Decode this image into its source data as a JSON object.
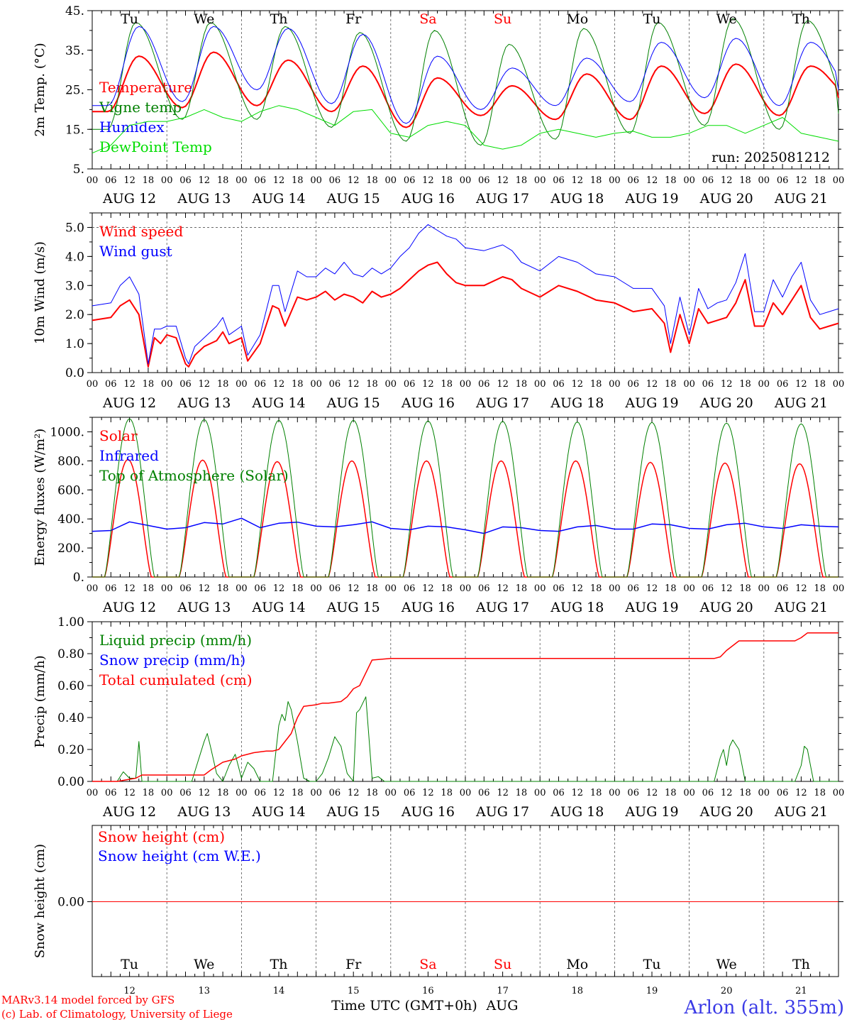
{
  "colors": {
    "red": "#ff0000",
    "green": "#008000",
    "blue": "#0000ff",
    "lime": "#00dd00",
    "title_blue": "#3a3ae6"
  },
  "run_label": "run: 2025081212",
  "hour_ticks": [
    "00",
    "06",
    "12",
    "18"
  ],
  "hour_end": "00",
  "dates": [
    "AUG 12",
    "AUG 13",
    "AUG 14",
    "AUG 15",
    "AUG 16",
    "AUG 17",
    "AUG 18",
    "AUG 19",
    "AUG 20",
    "AUG 21"
  ],
  "weekdays": [
    {
      "label": "Tu",
      "weekend": false
    },
    {
      "label": "We",
      "weekend": false
    },
    {
      "label": "Th",
      "weekend": false
    },
    {
      "label": "Fr",
      "weekend": false
    },
    {
      "label": "Sa",
      "weekend": true
    },
    {
      "label": "Su",
      "weekend": true
    },
    {
      "label": "Mo",
      "weekend": false
    },
    {
      "label": "Tu",
      "weekend": false
    },
    {
      "label": "We",
      "weekend": false
    },
    {
      "label": "Th",
      "weekend": false
    }
  ],
  "day_numbers": [
    "12",
    "13",
    "14",
    "15",
    "16",
    "17",
    "18",
    "19",
    "20",
    "21"
  ],
  "xaxis_title": "Time UTC (GMT+0h)",
  "month_label": "AUG",
  "footer": {
    "model_line": "MARv3.14 model forced by GFS",
    "copyright_line": "(c) Lab. of Climatology, University of Liege",
    "location": "Arlon (alt. 355m)"
  },
  "chart_data": [
    {
      "type": "line",
      "ylabel": "2m Temp. (°C)",
      "ylim": [
        5,
        45
      ],
      "yticks": [
        {
          "v": 5,
          "label": "5."
        },
        {
          "v": 15,
          "label": "15."
        },
        {
          "v": 25,
          "label": "25."
        },
        {
          "v": 35,
          "label": "35."
        },
        {
          "v": 45,
          "label": "45."
        }
      ],
      "grid": true,
      "x_range_hours": [
        0,
        240
      ],
      "series": [
        {
          "name": "Temperature",
          "color": "#ff0000",
          "width": 2,
          "min": [
            19.5,
            20.5,
            21,
            19.5,
            15.5,
            18.5,
            17.5,
            17.5,
            19,
            18.5,
            23
          ],
          "max": [
            33.5,
            34.5,
            32.5,
            31,
            28,
            26,
            29,
            31,
            31.5,
            31
          ],
          "peak_hour": 15
        },
        {
          "name": "Vigne temp",
          "color": "#008000",
          "width": 1,
          "min": [
            15,
            17.5,
            17.5,
            15.5,
            12,
            11,
            12.5,
            14,
            16,
            15,
            19
          ],
          "max": [
            42,
            42,
            41,
            39.5,
            40,
            36.5,
            40.5,
            42,
            43,
            42.5
          ],
          "peak_hour": 14
        },
        {
          "name": "Humidex",
          "color": "#0000ff",
          "width": 1,
          "min": [
            21,
            22,
            25,
            21.5,
            16.5,
            20,
            21,
            22,
            23,
            21,
            25
          ],
          "max": [
            41,
            41,
            40.5,
            39,
            33.5,
            30.5,
            33,
            37,
            38,
            37
          ],
          "peak_hour": 15
        },
        {
          "name": "DewPoint Temp",
          "color": "#00dd00",
          "width": 1,
          "x": [
            0,
            6,
            12,
            18,
            24,
            30,
            36,
            42,
            48,
            54,
            60,
            66,
            72,
            78,
            84,
            90,
            96,
            102,
            108,
            114,
            120,
            126,
            132,
            138,
            144,
            150,
            156,
            162,
            168,
            174,
            180,
            186,
            192,
            198,
            204,
            210,
            216,
            222,
            228,
            234,
            240
          ],
          "y": [
            9,
            11,
            16,
            17,
            17,
            18,
            20,
            18,
            17,
            19.5,
            21,
            20,
            18,
            16,
            19.5,
            20,
            14,
            13,
            16,
            17,
            16,
            11,
            10,
            11,
            14,
            15,
            14,
            13,
            14,
            14.5,
            13,
            13,
            14,
            16,
            16,
            14,
            16,
            18,
            14,
            13,
            12
          ]
        }
      ]
    },
    {
      "type": "line",
      "ylabel": "10m Wind (m/s)",
      "ylim": [
        0,
        5.5
      ],
      "yticks": [
        {
          "v": 0,
          "label": "0.0"
        },
        {
          "v": 1,
          "label": "1.0"
        },
        {
          "v": 2,
          "label": "2.0"
        },
        {
          "v": 3,
          "label": "3.0"
        },
        {
          "v": 4,
          "label": "4.0"
        },
        {
          "v": 5,
          "label": "5.0"
        }
      ],
      "ref_line": 5,
      "grid": true,
      "x_range_hours": [
        0,
        240
      ],
      "series": [
        {
          "name": "Wind speed",
          "color": "#ff0000",
          "width": 2,
          "x": [
            0,
            6,
            9,
            12,
            15,
            18,
            20,
            22,
            24,
            27,
            30,
            31,
            33,
            36,
            40,
            42,
            44,
            48,
            50,
            54,
            58,
            60,
            62,
            66,
            69,
            72,
            75,
            78,
            81,
            84,
            87,
            90,
            93,
            96,
            99,
            102,
            105,
            108,
            111,
            114,
            117,
            120,
            126,
            132,
            135,
            138,
            144,
            150,
            156,
            162,
            168,
            174,
            180,
            184,
            186,
            189,
            192,
            195,
            198,
            201,
            204,
            207,
            210,
            213,
            216,
            219,
            222,
            225,
            228,
            231,
            234,
            237,
            240
          ],
          "y": [
            1.8,
            1.9,
            2.3,
            2.5,
            2.0,
            0.2,
            1.2,
            1.0,
            1.3,
            1.2,
            0.3,
            0.2,
            0.6,
            0.9,
            1.1,
            1.4,
            1.0,
            1.2,
            0.4,
            1.0,
            2.3,
            2.2,
            1.6,
            2.6,
            2.5,
            2.6,
            2.8,
            2.5,
            2.7,
            2.6,
            2.4,
            2.8,
            2.6,
            2.7,
            2.9,
            3.2,
            3.5,
            3.7,
            3.8,
            3.4,
            3.1,
            3.0,
            3.0,
            3.3,
            3.2,
            2.9,
            2.6,
            3.0,
            2.8,
            2.5,
            2.4,
            2.1,
            2.2,
            1.7,
            0.7,
            2.0,
            1.0,
            2.2,
            1.7,
            1.8,
            1.9,
            2.4,
            3.2,
            1.6,
            1.6,
            2.4,
            2.0,
            2.5,
            3.0,
            1.9,
            1.5,
            1.6,
            1.7
          ]
        },
        {
          "name": "Wind gust",
          "color": "#0000ff",
          "width": 1,
          "x": [
            0,
            6,
            9,
            12,
            15,
            18,
            20,
            22,
            24,
            27,
            30,
            31,
            33,
            36,
            40,
            42,
            44,
            48,
            50,
            54,
            58,
            60,
            62,
            66,
            69,
            72,
            75,
            78,
            81,
            84,
            87,
            90,
            93,
            96,
            99,
            102,
            105,
            108,
            111,
            114,
            117,
            120,
            126,
            132,
            135,
            138,
            144,
            150,
            156,
            162,
            168,
            174,
            180,
            184,
            186,
            189,
            192,
            195,
            198,
            201,
            204,
            207,
            210,
            213,
            216,
            219,
            222,
            225,
            228,
            231,
            234,
            237,
            240
          ],
          "y": [
            2.3,
            2.4,
            3.0,
            3.3,
            2.7,
            0.3,
            1.5,
            1.5,
            1.6,
            1.6,
            0.5,
            0.3,
            0.9,
            1.2,
            1.6,
            1.9,
            1.3,
            1.6,
            0.6,
            1.3,
            3.0,
            3.0,
            2.1,
            3.5,
            3.3,
            3.3,
            3.6,
            3.4,
            3.8,
            3.4,
            3.3,
            3.6,
            3.4,
            3.6,
            4.0,
            4.3,
            4.8,
            5.1,
            4.9,
            4.7,
            4.6,
            4.3,
            4.2,
            4.4,
            4.2,
            3.8,
            3.5,
            4.0,
            3.8,
            3.4,
            3.3,
            2.9,
            2.9,
            2.3,
            1.0,
            2.6,
            1.3,
            2.9,
            2.2,
            2.4,
            2.5,
            3.1,
            4.1,
            2.1,
            2.1,
            3.2,
            2.6,
            3.3,
            3.8,
            2.5,
            2.0,
            2.1,
            2.2
          ]
        }
      ]
    },
    {
      "type": "line",
      "ylabel": "Energy fluxes (W/m²)",
      "ylim": [
        0,
        1100
      ],
      "yticks": [
        {
          "v": 0,
          "label": "0."
        },
        {
          "v": 200,
          "label": "200."
        },
        {
          "v": 400,
          "label": "400."
        },
        {
          "v": 600,
          "label": "600."
        },
        {
          "v": 800,
          "label": "800."
        },
        {
          "v": 1000,
          "label": "1000."
        }
      ],
      "grid": true,
      "x_range_hours": [
        0,
        240
      ],
      "series": [
        {
          "name": "Solar",
          "color": "#ff0000",
          "width": 1.5,
          "daily_peak": [
            810,
            805,
            795,
            800,
            800,
            800,
            800,
            790,
            785,
            780
          ],
          "day_start": 4,
          "day_end": 19
        },
        {
          "name": "Infrared",
          "color": "#0000ff",
          "width": 1.5,
          "x": [
            0,
            6,
            12,
            18,
            24,
            30,
            36,
            42,
            48,
            54,
            60,
            66,
            72,
            78,
            84,
            90,
            96,
            102,
            108,
            114,
            120,
            126,
            132,
            138,
            144,
            150,
            156,
            162,
            168,
            174,
            180,
            186,
            192,
            198,
            204,
            210,
            216,
            222,
            228,
            234,
            240
          ],
          "y": [
            315,
            320,
            380,
            355,
            330,
            340,
            375,
            365,
            405,
            340,
            370,
            378,
            350,
            345,
            360,
            380,
            335,
            325,
            350,
            345,
            325,
            300,
            345,
            340,
            320,
            315,
            345,
            355,
            330,
            330,
            365,
            360,
            335,
            330,
            360,
            370,
            345,
            335,
            360,
            350,
            345
          ]
        },
        {
          "name": "Top of Atmosphere (Solar)",
          "color": "#008000",
          "width": 1,
          "daily_peak": [
            1090,
            1085,
            1080,
            1080,
            1075,
            1072,
            1068,
            1065,
            1060,
            1055
          ],
          "day_start": 4,
          "day_end": 20
        }
      ]
    },
    {
      "type": "line",
      "ylabel": "Precip (mm/h)",
      "ylim": [
        0,
        1.0
      ],
      "yticks": [
        {
          "v": 0,
          "label": "0.00"
        },
        {
          "v": 0.2,
          "label": "0.20"
        },
        {
          "v": 0.4,
          "label": "0.40"
        },
        {
          "v": 0.6,
          "label": "0.60"
        },
        {
          "v": 0.8,
          "label": "0.80"
        },
        {
          "v": 1.0,
          "label": "1.00"
        }
      ],
      "grid": true,
      "x_range_hours": [
        0,
        240
      ],
      "series": [
        {
          "name": "Liquid precip (mm/h)",
          "color": "#008000",
          "width": 1,
          "x": [
            0,
            8,
            10,
            12,
            14,
            15,
            16,
            18,
            26,
            32,
            36,
            37,
            38,
            40,
            42,
            44,
            46,
            48,
            50,
            52,
            54,
            56,
            58,
            60,
            61,
            62,
            63,
            64,
            66,
            68,
            70,
            72,
            74,
            76,
            78,
            80,
            82,
            84,
            85,
            86,
            88,
            90,
            92,
            94,
            96,
            120,
            144,
            168,
            192,
            200,
            202,
            203,
            204,
            205,
            206,
            208,
            210,
            212,
            214,
            216,
            226,
            228,
            229,
            230,
            231,
            232,
            234,
            240
          ],
          "y": [
            0,
            0,
            0.06,
            0.02,
            0.02,
            0.25,
            0,
            0,
            0,
            0,
            0.25,
            0.3,
            0.22,
            0.05,
            0,
            0.1,
            0.17,
            0.02,
            0.12,
            0.08,
            0,
            0,
            0,
            0.35,
            0.42,
            0.38,
            0.5,
            0.45,
            0.25,
            0.02,
            0,
            0,
            0.05,
            0.15,
            0.28,
            0.22,
            0.05,
            0,
            0.43,
            0.45,
            0.53,
            0.02,
            0.03,
            0,
            0,
            0,
            0,
            0,
            0,
            0,
            0.15,
            0.2,
            0.1,
            0.22,
            0.26,
            0.2,
            0,
            0,
            0,
            0,
            0,
            0.1,
            0.22,
            0.2,
            0.1,
            0,
            0,
            0
          ]
        },
        {
          "name": "Snow precip (mm/h)",
          "color": "#0000ff",
          "width": 1
        },
        {
          "name": "Total cumulated (cm)",
          "color": "#ff0000",
          "width": 1.5,
          "x": [
            0,
            8,
            14,
            16,
            18,
            36,
            38,
            42,
            46,
            48,
            52,
            56,
            58,
            60,
            64,
            66,
            68,
            72,
            74,
            76,
            80,
            82,
            84,
            86,
            90,
            96,
            120,
            144,
            168,
            192,
            200,
            202,
            204,
            208,
            210,
            216,
            226,
            228,
            230,
            240
          ],
          "y": [
            0,
            0,
            0.02,
            0.04,
            0.04,
            0.04,
            0.07,
            0.12,
            0.14,
            0.16,
            0.18,
            0.19,
            0.19,
            0.2,
            0.3,
            0.4,
            0.47,
            0.48,
            0.49,
            0.49,
            0.5,
            0.53,
            0.58,
            0.6,
            0.76,
            0.77,
            0.77,
            0.77,
            0.77,
            0.77,
            0.77,
            0.78,
            0.82,
            0.88,
            0.88,
            0.88,
            0.88,
            0.9,
            0.93,
            0.93
          ]
        }
      ]
    },
    {
      "type": "line",
      "ylabel": "Snow height (cm)",
      "yticks": [
        {
          "v": 0,
          "label": "0.00"
        }
      ],
      "grid": true,
      "x_range_hours": [
        0,
        240
      ],
      "series": [
        {
          "name": "Snow height (cm)",
          "color": "#ff0000",
          "width": 1,
          "x": [
            0,
            240
          ],
          "y": [
            0,
            0
          ]
        },
        {
          "name": "Snow height (cm W.E.)",
          "color": "#0000ff",
          "width": 1
        }
      ]
    }
  ]
}
